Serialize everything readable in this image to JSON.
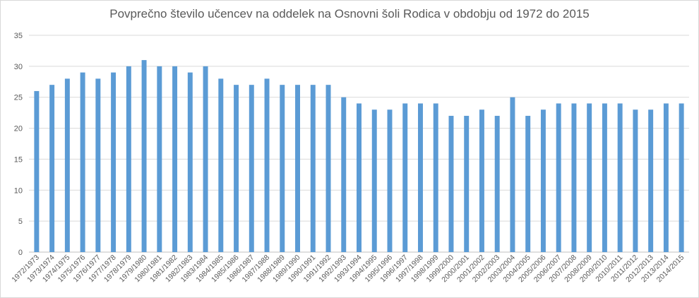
{
  "chart_data": {
    "type": "bar",
    "title": "Povprečno število učencev na oddelek  na Osnovni šoli Rodica v obdobju od 1972 do 2015",
    "xlabel": "",
    "ylabel": "",
    "ylim": [
      0,
      35
    ],
    "yticks": [
      0,
      5,
      10,
      15,
      20,
      25,
      30,
      35
    ],
    "grid": true,
    "bar_color": "#5b9bd5",
    "categories": [
      "1972/1973",
      "1973/1974",
      "1974/1975",
      "1975/1976",
      "1976/1977",
      "1977/1978",
      "1978/1979",
      "1979/1980",
      "1980/1981",
      "1981/1982",
      "1982/1983",
      "1983/1984",
      "1984/1985",
      "1985/1986",
      "1986/1987",
      "1987/1988",
      "1988/1989",
      "1989/1990",
      "1990/1991",
      "1991/1992",
      "1992/1993",
      "1993/1994",
      "1994/1995",
      "1995/1996",
      "1996/1997",
      "1997/1998",
      "1998/1999",
      "1999/2000",
      "2000/2001",
      "2001/2002",
      "2002/2003",
      "2003/2004",
      "2004/2005",
      "2005/2006",
      "2006/2007",
      "2007/2008",
      "2008/2009",
      "2009/2010",
      "2010/2011",
      "2011/2012",
      "2012/2013",
      "2013/2014",
      "2014/2015"
    ],
    "values": [
      26,
      27,
      28,
      29,
      28,
      29,
      30,
      31,
      30,
      30,
      29,
      30,
      28,
      27,
      27,
      28,
      27,
      27,
      27,
      27,
      25,
      24,
      23,
      23,
      24,
      24,
      24,
      22,
      22,
      23,
      22,
      25,
      22,
      23,
      24,
      24,
      24,
      24,
      24,
      23,
      23,
      24,
      24
    ]
  }
}
